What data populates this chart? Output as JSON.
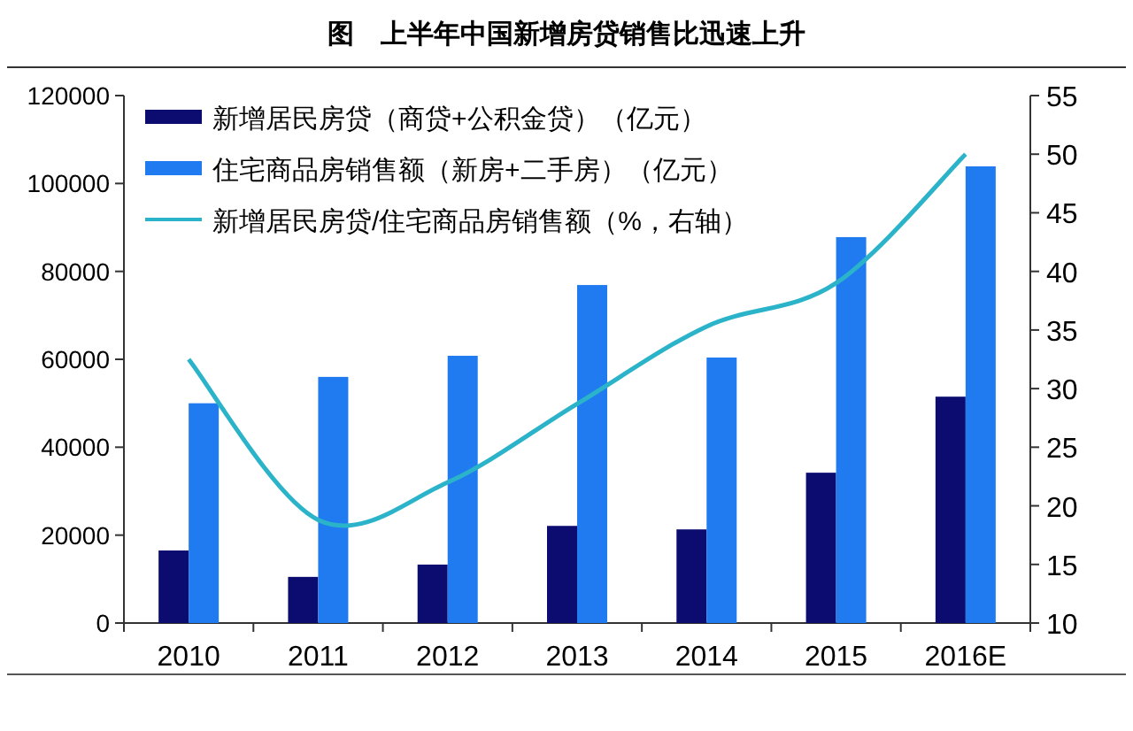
{
  "chart_data": {
    "type": "bar",
    "title": "图　上半年中国新增房贷销售比迅速上升",
    "categories": [
      "2010",
      "2011",
      "2012",
      "2013",
      "2014",
      "2015",
      "2016E"
    ],
    "series": [
      {
        "name": "新增居民房贷（商贷+公积金贷）（亿元）",
        "color": "#0b0b70",
        "values": [
          16500,
          10500,
          13300,
          22100,
          21300,
          34200,
          51500
        ]
      },
      {
        "name": "住宅商品房销售额（新房+二手房）（亿元）",
        "color": "#1f7bef",
        "values": [
          50000,
          56000,
          60800,
          76900,
          60400,
          87800,
          103900
        ]
      },
      {
        "name": "新增居民房贷/住宅商品房销售额（%，右轴）",
        "type": "line",
        "axis": "y2",
        "color": "#2ab3c9",
        "values": [
          32.5,
          18.8,
          22,
          28.7,
          35.3,
          39,
          50
        ]
      }
    ],
    "ylim": [
      0,
      120000
    ],
    "yticks": [
      0,
      20000,
      40000,
      60000,
      80000,
      100000,
      120000
    ],
    "y2lim": [
      10,
      55
    ],
    "y2ticks": [
      10,
      15,
      20,
      25,
      30,
      35,
      40,
      45,
      50,
      55
    ],
    "legend": "top left",
    "grid": false
  }
}
